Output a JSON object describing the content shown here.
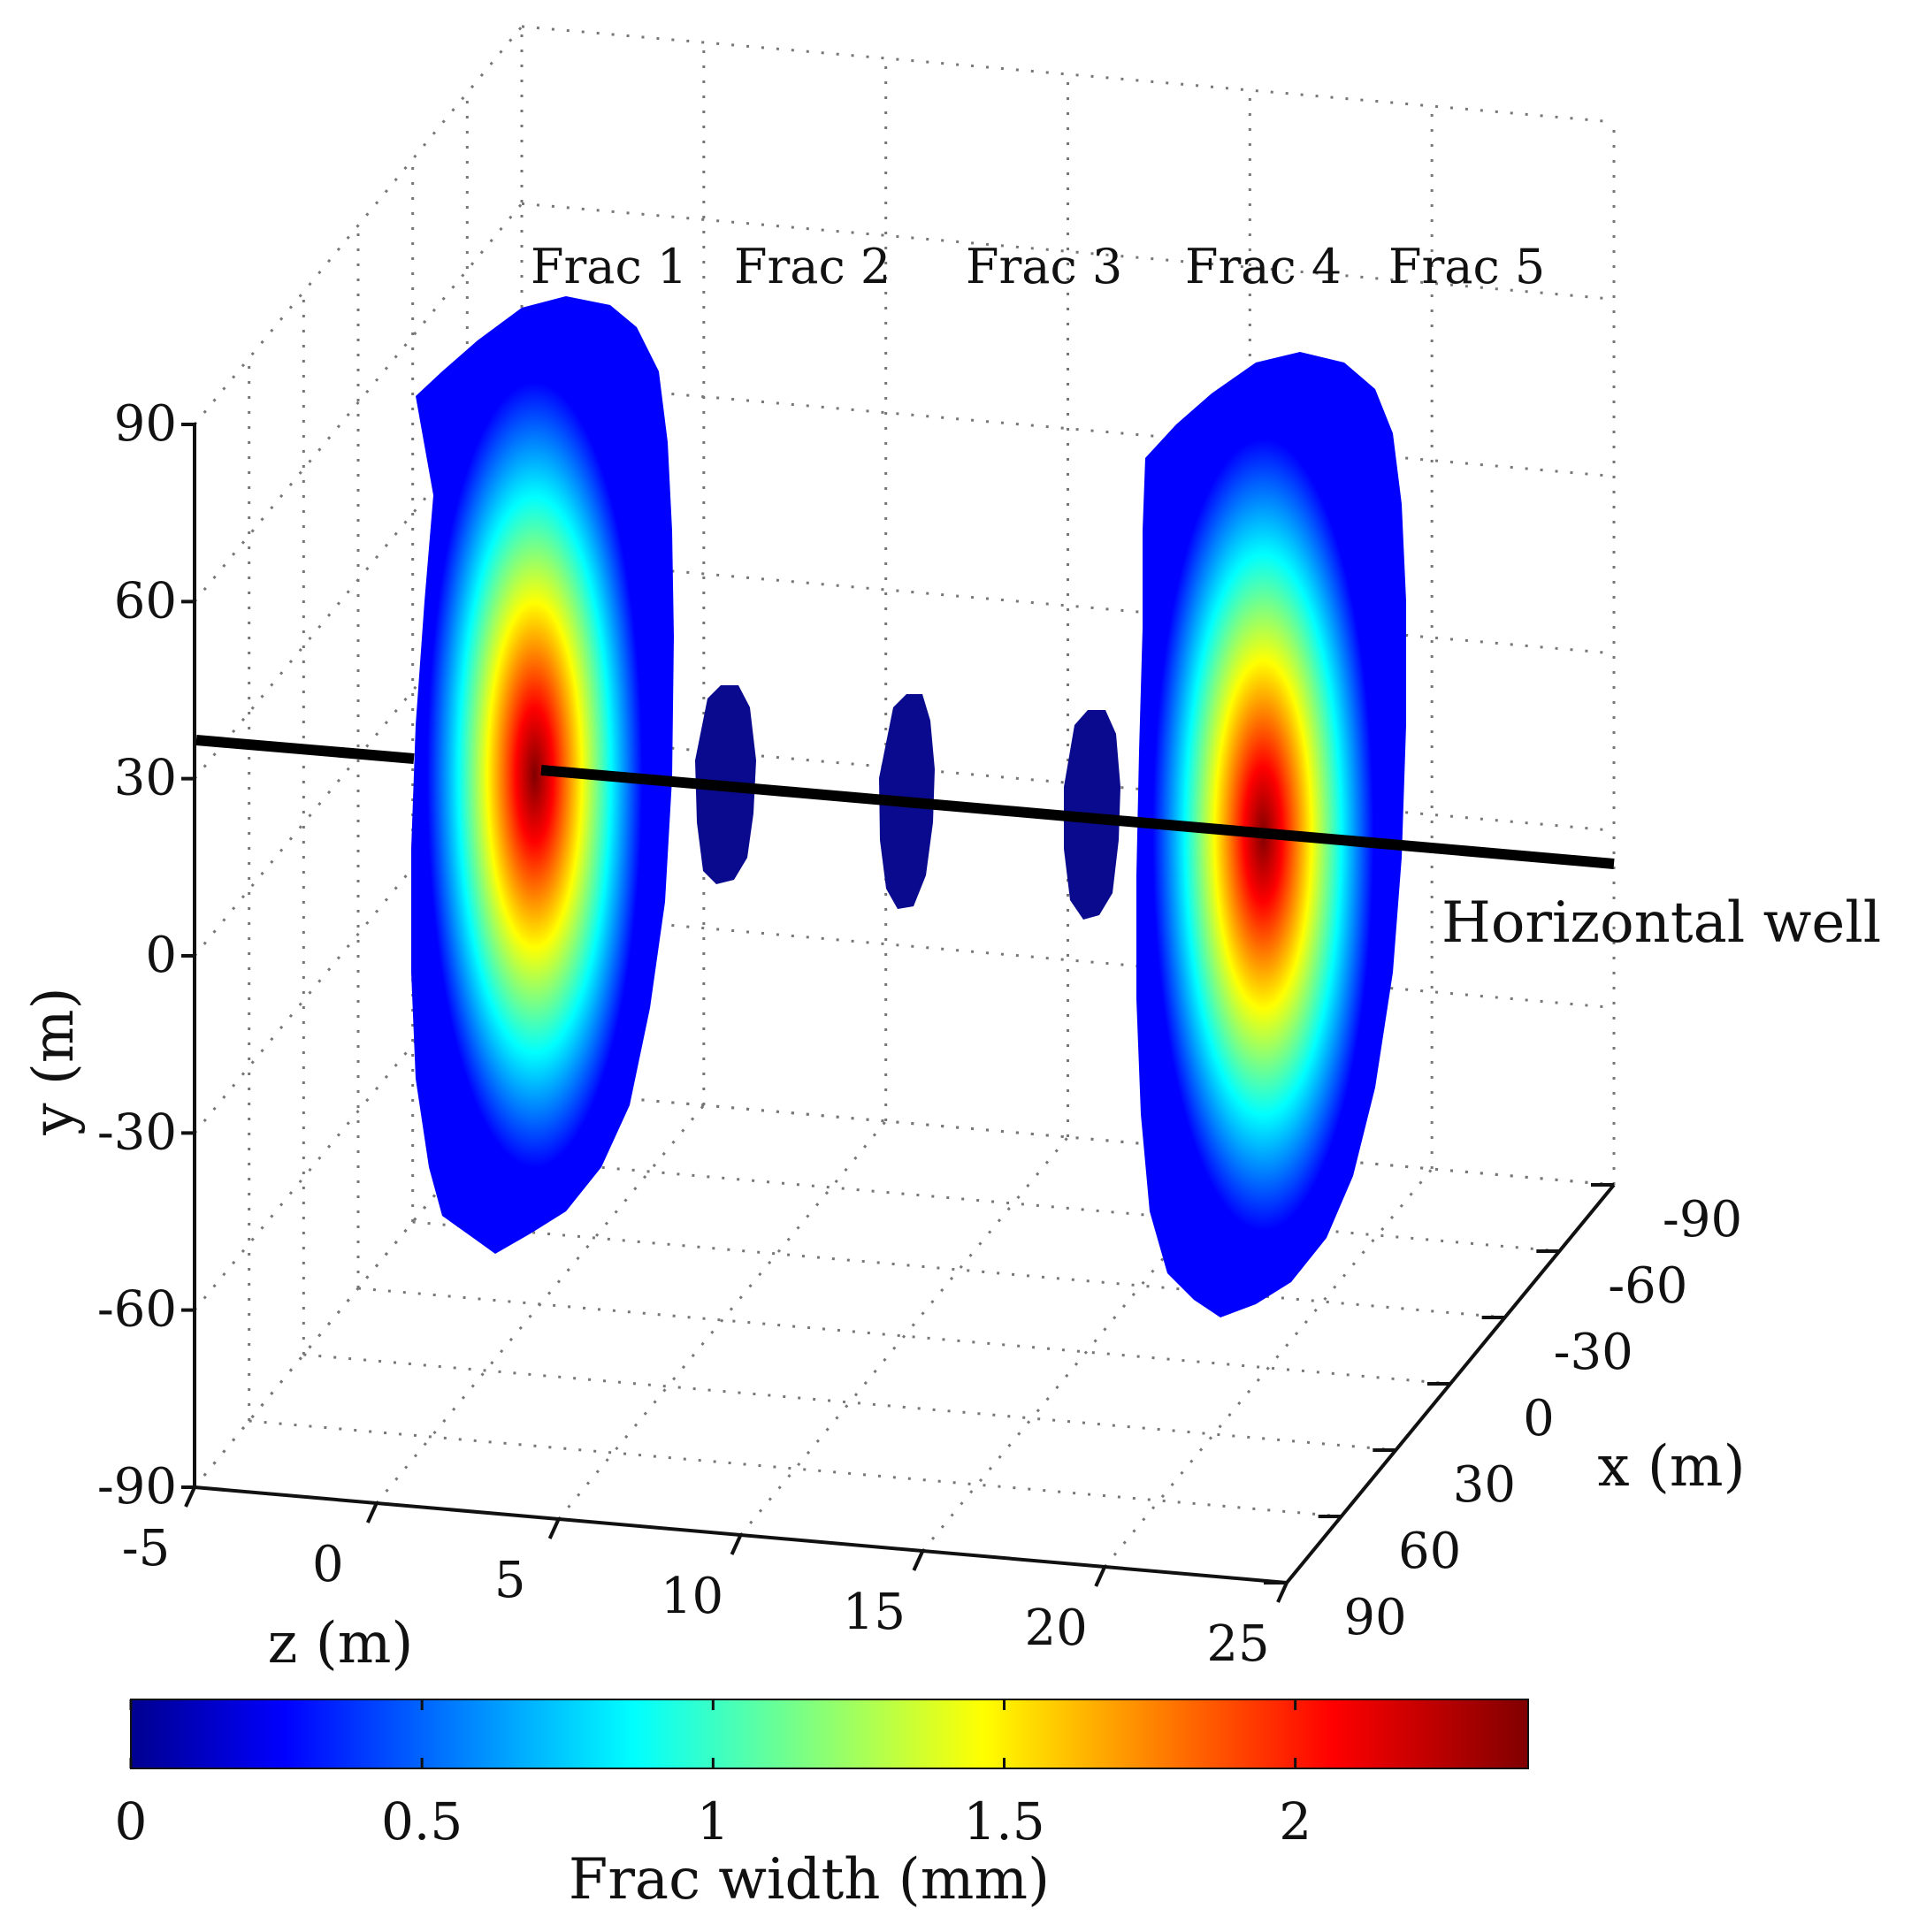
{
  "chart_data": {
    "type": "3d-surface",
    "description_note": "",
    "title": "",
    "axes": {
      "x": {
        "label": "x (m)",
        "ticks": [
          "-90",
          "-60",
          "-30",
          "0",
          "30",
          "60",
          "90"
        ],
        "range": [
          -90,
          90
        ]
      },
      "y": {
        "label": "y (m)",
        "ticks": [
          "90",
          "60",
          "30",
          "0",
          "-30",
          "-60",
          "-90"
        ],
        "range": [
          -90,
          90
        ]
      },
      "z": {
        "label": "z (m)",
        "ticks": [
          "-5",
          "0",
          "5",
          "10",
          "15",
          "20",
          "25"
        ],
        "range": [
          -5,
          25
        ]
      }
    },
    "grid": true,
    "fractures": [
      {
        "label": "Frac 1",
        "z": 2,
        "max_width_mm": 2.3,
        "radius_m": 75
      },
      {
        "label": "Frac 2",
        "z": 7,
        "max_width_mm": 0.05,
        "radius_m": 25
      },
      {
        "label": "Frac 3",
        "z": 12,
        "max_width_mm": 0.05,
        "radius_m": 25
      },
      {
        "label": "Frac 4",
        "z": 17,
        "max_width_mm": 0.05,
        "radius_m": 25
      },
      {
        "label": "Frac 5",
        "z": 22,
        "max_width_mm": 2.3,
        "radius_m": 75
      }
    ],
    "well": {
      "label": "Horizontal well",
      "y": 30,
      "x": 0
    },
    "colorbar": {
      "label": "Frac width (mm)",
      "ticks": [
        "0",
        "0.5",
        "1",
        "1.5",
        "2"
      ],
      "tick_values": [
        0,
        0.5,
        1,
        1.5,
        2
      ],
      "range": [
        0,
        2.4
      ],
      "colormap": "jet",
      "colors": [
        "#00008f",
        "#0000ff",
        "#00ffff",
        "#ffff00",
        "#ff0000",
        "#800000"
      ]
    }
  }
}
